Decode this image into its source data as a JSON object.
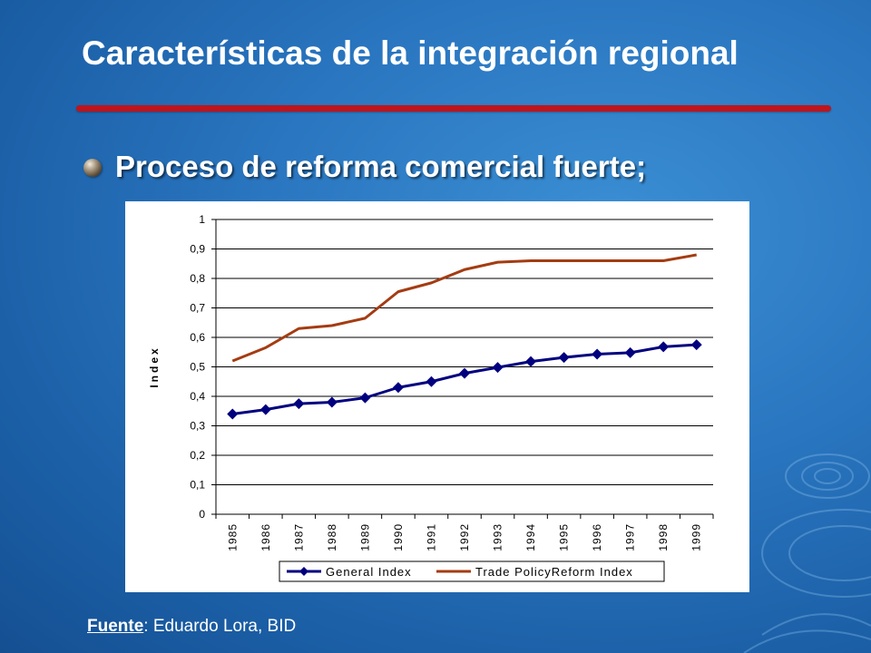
{
  "slide": {
    "title": "Características de la integración regional",
    "bullet": "Proceso de reforma comercial fuerte;",
    "source_label": "Fuente",
    "source_text": ": Eduardo Lora, BID"
  },
  "colors": {
    "background": "#2a76c0",
    "title_rule": "#c0141c",
    "series_general": "#00007f",
    "series_trade": "#a43c12"
  },
  "chart_data": {
    "type": "line",
    "title": "",
    "xlabel": "",
    "ylabel": "Index",
    "ylim": [
      0,
      1
    ],
    "yticks": [
      "0",
      "0,1",
      "0,2",
      "0,3",
      "0,4",
      "0,5",
      "0,6",
      "0,7",
      "0,8",
      "0,9",
      "1"
    ],
    "grid": true,
    "legend_position": "bottom",
    "categories": [
      "1985",
      "1986",
      "1987",
      "1988",
      "1989",
      "1990",
      "1991",
      "1992",
      "1993",
      "1994",
      "1995",
      "1996",
      "1997",
      "1998",
      "1999"
    ],
    "series": [
      {
        "name": "General Index",
        "marker": "diamond",
        "color": "#00007f",
        "values": [
          0.34,
          0.355,
          0.375,
          0.38,
          0.395,
          0.43,
          0.45,
          0.478,
          0.498,
          0.518,
          0.532,
          0.543,
          0.548,
          0.568,
          0.575
        ]
      },
      {
        "name": "Trade PolicyReform Index",
        "marker": "none",
        "color": "#a43c12",
        "values": [
          0.52,
          0.565,
          0.63,
          0.64,
          0.665,
          0.755,
          0.785,
          0.83,
          0.855,
          0.86,
          0.86,
          0.86,
          0.86,
          0.86,
          0.88
        ]
      }
    ]
  }
}
